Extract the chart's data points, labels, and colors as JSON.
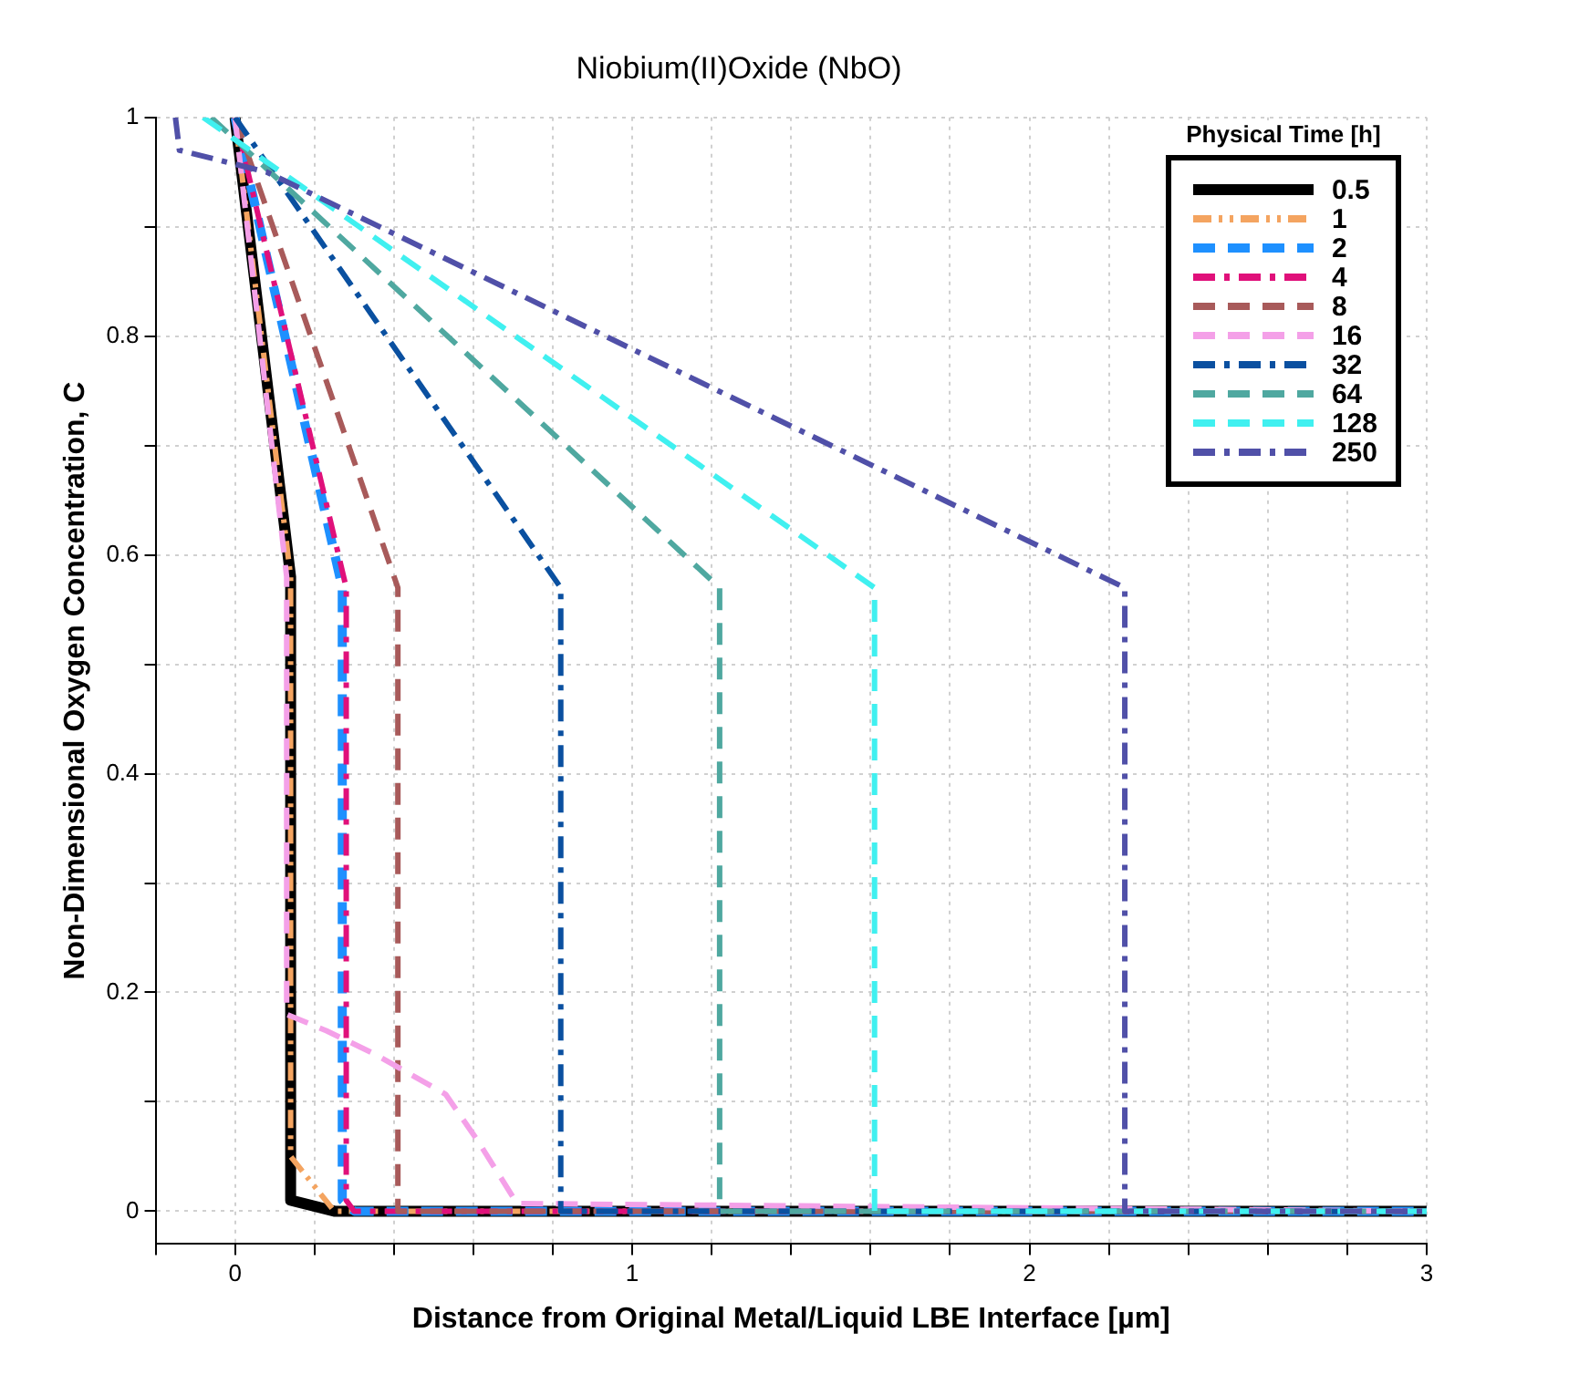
{
  "chart_data": {
    "type": "line",
    "title": "Niobium(II)Oxide (NbO)",
    "xlabel": "Distance from Original Metal/Liquid LBE Interface [µm]",
    "ylabel": "Non-Dimensional Oxygen Concentration, C",
    "legend_title": "Physical Time [h]",
    "legend": "top right",
    "grid": true,
    "marker": "none",
    "xlim": [
      -0.2,
      3
    ],
    "ylim": [
      -0.03,
      1
    ],
    "xticks": [
      {
        "value": -0.2,
        "label": null
      },
      0,
      {
        "value": 0.2,
        "label": null
      },
      {
        "value": 0.4,
        "label": null
      },
      {
        "value": 0.6,
        "label": null
      },
      {
        "value": 0.8,
        "label": null
      },
      1,
      {
        "value": 1.2,
        "label": null
      },
      {
        "value": 1.4,
        "label": null
      },
      {
        "value": 1.6,
        "label": null
      },
      {
        "value": 1.8,
        "label": null
      },
      2,
      {
        "value": 2.2,
        "label": null
      },
      {
        "value": 2.4,
        "label": null
      },
      {
        "value": 2.6,
        "label": null
      },
      {
        "value": 2.8,
        "label": null
      },
      3
    ],
    "yticks": [
      0,
      {
        "value": 0.1,
        "label": null
      },
      0.2,
      {
        "value": 0.3,
        "label": null
      },
      0.4,
      {
        "value": 0.5,
        "label": null
      },
      0.6,
      {
        "value": 0.7,
        "label": null
      },
      0.8,
      {
        "value": 0.9,
        "label": null
      },
      1
    ],
    "series": [
      {
        "name": "0.5",
        "color": "#000000",
        "line_style": "solid",
        "x": [
          0,
          0.14,
          0.14,
          0.25,
          3
        ],
        "values": [
          1,
          0.58,
          0.01,
          0,
          0
        ]
      },
      {
        "name": "1",
        "color": "#f4a460",
        "line_style": "dashdotdot",
        "x": [
          0,
          0.14,
          0.14,
          0.25,
          3
        ],
        "values": [
          1,
          0.58,
          0.05,
          0,
          0
        ]
      },
      {
        "name": "2",
        "color": "#1e90ff",
        "line_style": "dashed",
        "x": [
          0,
          0.27,
          0.27,
          0.3,
          3
        ],
        "values": [
          1,
          0.57,
          0.01,
          0,
          0
        ]
      },
      {
        "name": "4",
        "color": "#e0107a",
        "line_style": "dashdot",
        "x": [
          0,
          0.28,
          0.28,
          0.3,
          3
        ],
        "values": [
          1,
          0.57,
          0.01,
          0,
          0
        ]
      },
      {
        "name": "8",
        "color": "#a85a5a",
        "line_style": "dashed",
        "x": [
          0,
          0.41,
          0.41,
          3
        ],
        "values": [
          1,
          0.57,
          0,
          0
        ]
      },
      {
        "name": "16",
        "color": "#f4a0e8",
        "line_style": "dashed",
        "x": [
          0,
          0.13,
          0.13,
          0.23,
          0.35,
          0.53,
          0.61,
          0.71,
          3
        ],
        "values": [
          1,
          0.58,
          0.18,
          0.165,
          0.144,
          0.107,
          0.065,
          0.007,
          0
        ]
      },
      {
        "name": "32",
        "color": "#0a50a0",
        "line_style": "dashdot",
        "x": [
          0,
          0.82,
          0.82,
          3
        ],
        "values": [
          1,
          0.57,
          0,
          0
        ]
      },
      {
        "name": "64",
        "color": "#4fa8a0",
        "line_style": "dashed",
        "x": [
          -0.06,
          1.22,
          1.22,
          3
        ],
        "values": [
          1,
          0.57,
          0,
          0
        ]
      },
      {
        "name": "128",
        "color": "#40f0f0",
        "line_style": "dashed",
        "x": [
          -0.08,
          1.61,
          1.61,
          3
        ],
        "values": [
          1,
          0.57,
          0,
          0
        ]
      },
      {
        "name": "250",
        "color": "#5050a8",
        "line_style": "dashdot",
        "x": [
          -0.15,
          -0.14,
          0.08,
          2.24,
          2.24,
          3
        ],
        "values": [
          1,
          0.97,
          0.95,
          0.57,
          0,
          0
        ]
      }
    ]
  }
}
